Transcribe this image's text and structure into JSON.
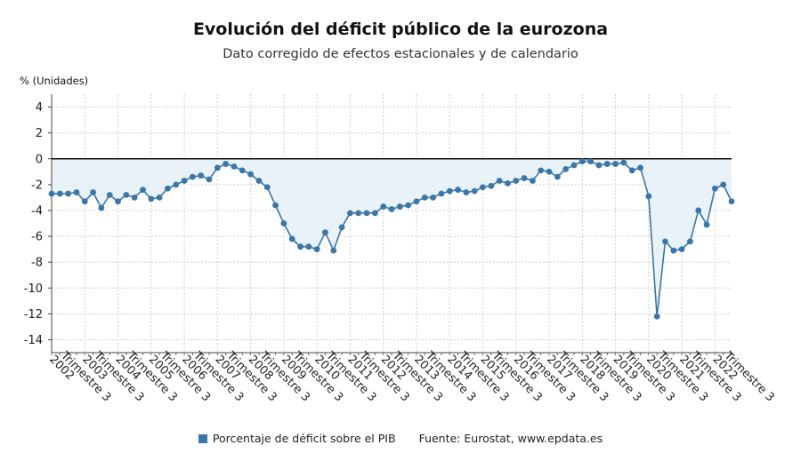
{
  "title": "Evolución del déficit público de la eurozona",
  "subtitle": "Dato corregido de efectos estacionales y de calendario",
  "unit_label": "% (Unidades)",
  "legend": {
    "series_label": "Porcentaje de déficit sobre el PIB",
    "source": "Fuente: Eurostat, www.epdata.es"
  },
  "colors": {
    "series": "#3a76a8",
    "area": "#e9f1f9",
    "zero_line": "#111111",
    "grid": "#cfcfcf"
  },
  "chart_data": {
    "type": "line",
    "y_label": "% (Unidades)",
    "ylim": [
      -15,
      5
    ],
    "yticks": [
      4,
      2,
      0,
      -2,
      -4,
      -6,
      -8,
      -10,
      -12,
      -14
    ],
    "grid": true,
    "legend_position": "bottom",
    "x_tick_labels": [
      "Trimestre 3 2002",
      "Trimestre 3 2003",
      "Trimestre 3 2004",
      "Trimestre 3 2005",
      "Trimestre 3 2006",
      "Trimestre 3 2007",
      "Trimestre 3 2008",
      "Trimestre 3 2009",
      "Trimestre 3 2010",
      "Trimestre 3 2011",
      "Trimestre 3 2012",
      "Trimestre 3 2013",
      "Trimestre 3 2014",
      "Trimestre 3 2015",
      "Trimestre 3 2016",
      "Trimestre 3 2017",
      "Trimestre 3 2018",
      "Trimestre 3 2019",
      "Trimestre 3 2020",
      "Trimestre 3 2021",
      "Trimestre 3 2022"
    ],
    "x_tick_lines": [
      "Trimestre 3",
      "2002"
    ],
    "series": [
      {
        "name": "Porcentaje de déficit sobre el PIB",
        "x": [
          "2002 T3",
          "2002 T4",
          "2003 T1",
          "2003 T2",
          "2003 T3",
          "2003 T4",
          "2004 T1",
          "2004 T2",
          "2004 T3",
          "2004 T4",
          "2005 T1",
          "2005 T2",
          "2005 T3",
          "2005 T4",
          "2006 T1",
          "2006 T2",
          "2006 T3",
          "2006 T4",
          "2007 T1",
          "2007 T2",
          "2007 T3",
          "2007 T4",
          "2008 T1",
          "2008 T2",
          "2008 T3",
          "2008 T4",
          "2009 T1",
          "2009 T2",
          "2009 T3",
          "2009 T4",
          "2010 T1",
          "2010 T2",
          "2010 T3",
          "2010 T4",
          "2011 T1",
          "2011 T2",
          "2011 T3",
          "2011 T4",
          "2012 T1",
          "2012 T2",
          "2012 T3",
          "2012 T4",
          "2013 T1",
          "2013 T2",
          "2013 T3",
          "2013 T4",
          "2014 T1",
          "2014 T2",
          "2014 T3",
          "2014 T4",
          "2015 T1",
          "2015 T2",
          "2015 T3",
          "2015 T4",
          "2016 T1",
          "2016 T2",
          "2016 T3",
          "2016 T4",
          "2017 T1",
          "2017 T2",
          "2017 T3",
          "2017 T4",
          "2018 T1",
          "2018 T2",
          "2018 T3",
          "2018 T4",
          "2019 T1",
          "2019 T2",
          "2019 T3",
          "2019 T4",
          "2020 T1",
          "2020 T2",
          "2020 T3",
          "2020 T4",
          "2021 T1",
          "2021 T2",
          "2021 T3",
          "2021 T4",
          "2022 T1",
          "2022 T2",
          "2022 T3",
          "2022 T4",
          "2023 T1"
        ],
        "values": [
          -2.7,
          -2.7,
          -2.7,
          -2.6,
          -3.3,
          -2.6,
          -3.8,
          -2.8,
          -3.3,
          -2.8,
          -3.0,
          -2.4,
          -3.1,
          -3.0,
          -2.3,
          -2.0,
          -1.7,
          -1.4,
          -1.3,
          -1.6,
          -0.7,
          -0.4,
          -0.6,
          -0.9,
          -1.2,
          -1.7,
          -2.2,
          -3.6,
          -5.0,
          -6.2,
          -6.8,
          -6.8,
          -7.0,
          -5.7,
          -7.1,
          -5.3,
          -4.2,
          -4.2,
          -4.2,
          -4.2,
          -3.7,
          -3.9,
          -3.7,
          -3.6,
          -3.3,
          -3.0,
          -3.0,
          -2.7,
          -2.5,
          -2.4,
          -2.6,
          -2.5,
          -2.2,
          -2.1,
          -1.7,
          -1.9,
          -1.7,
          -1.5,
          -1.7,
          -0.9,
          -1.0,
          -1.4,
          -0.8,
          -0.5,
          -0.2,
          -0.2,
          -0.5,
          -0.4,
          -0.4,
          -0.3,
          -0.9,
          -0.7,
          -2.9,
          -12.2,
          -6.4,
          -7.1,
          -7.0,
          -6.4,
          -4.0,
          -5.1,
          -2.3,
          -2.0,
          -3.3
        ]
      }
    ]
  }
}
